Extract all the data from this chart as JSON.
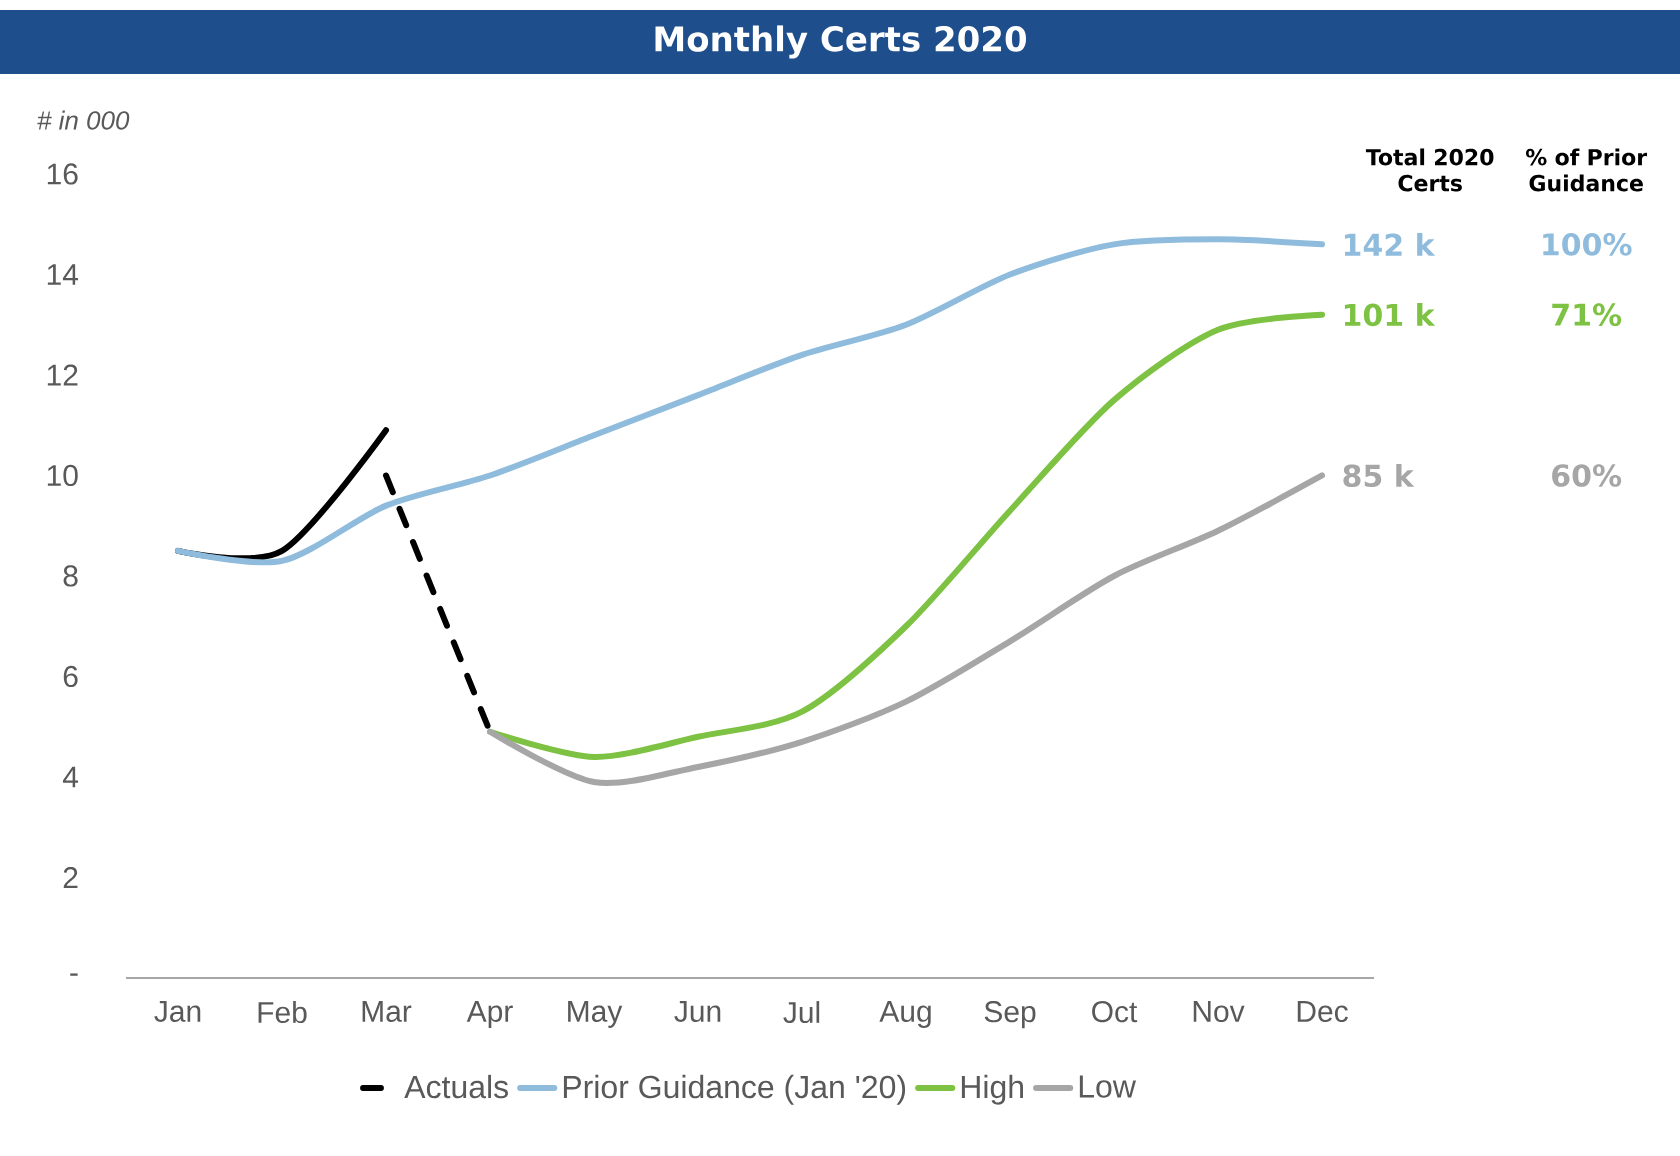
{
  "chart_data": {
    "type": "line",
    "title": "Monthly Certs 2020",
    "ylabel": "# in 000",
    "categories": [
      "Jan",
      "Feb",
      "Mar",
      "Apr",
      "May",
      "Jun",
      "Jul",
      "Aug",
      "Sep",
      "Oct",
      "Nov",
      "Dec"
    ],
    "series": [
      {
        "color": "#000000",
        "line_style": "solid",
        "values": [
          8.5,
          8.5,
          10.9,
          null,
          null,
          null,
          null,
          null,
          null,
          null,
          null,
          null
        ]
      },
      {
        "name": "Actuals",
        "color": "#000000",
        "line_style": "dashed",
        "values": [
          null,
          null,
          10.0,
          4.9,
          null,
          null,
          null,
          null,
          null,
          null,
          null,
          null
        ]
      },
      {
        "name": "Prior Guidance (Jan '20)",
        "color": "#8fbcdc",
        "line_style": "solid",
        "values": [
          8.5,
          8.3,
          9.4,
          10.0,
          10.8,
          11.6,
          12.4,
          13.0,
          14.0,
          14.6,
          14.7,
          14.6
        ]
      },
      {
        "name": "High",
        "color": "#7dc242",
        "line_style": "solid",
        "values": [
          null,
          null,
          null,
          4.9,
          4.4,
          4.8,
          5.3,
          7.0,
          9.3,
          11.5,
          12.9,
          13.2
        ]
      },
      {
        "name": "Low",
        "color": "#a6a6a6",
        "line_style": "solid",
        "values": [
          null,
          null,
          null,
          4.9,
          3.9,
          4.2,
          4.7,
          5.5,
          6.7,
          8.0,
          8.9,
          10.0
        ]
      }
    ],
    "ylim": [
      0,
      16
    ],
    "yticks": [
      {
        "value": 0,
        "label": "-"
      },
      2,
      4,
      6,
      8,
      10,
      12,
      14,
      16
    ],
    "grid": false,
    "legend": "bottom",
    "annotations": [
      "Total 2020 Certs",
      "% of Prior Guidance",
      {
        "text": "142 k",
        "x": "Dec",
        "y": 14.6
      },
      "100%",
      {
        "text": "101 k",
        "x": "Dec",
        "y": 13.2
      },
      "71%",
      {
        "text": "85 k",
        "x": "Dec",
        "y": 10.0
      },
      "60%"
    ]
  }
}
